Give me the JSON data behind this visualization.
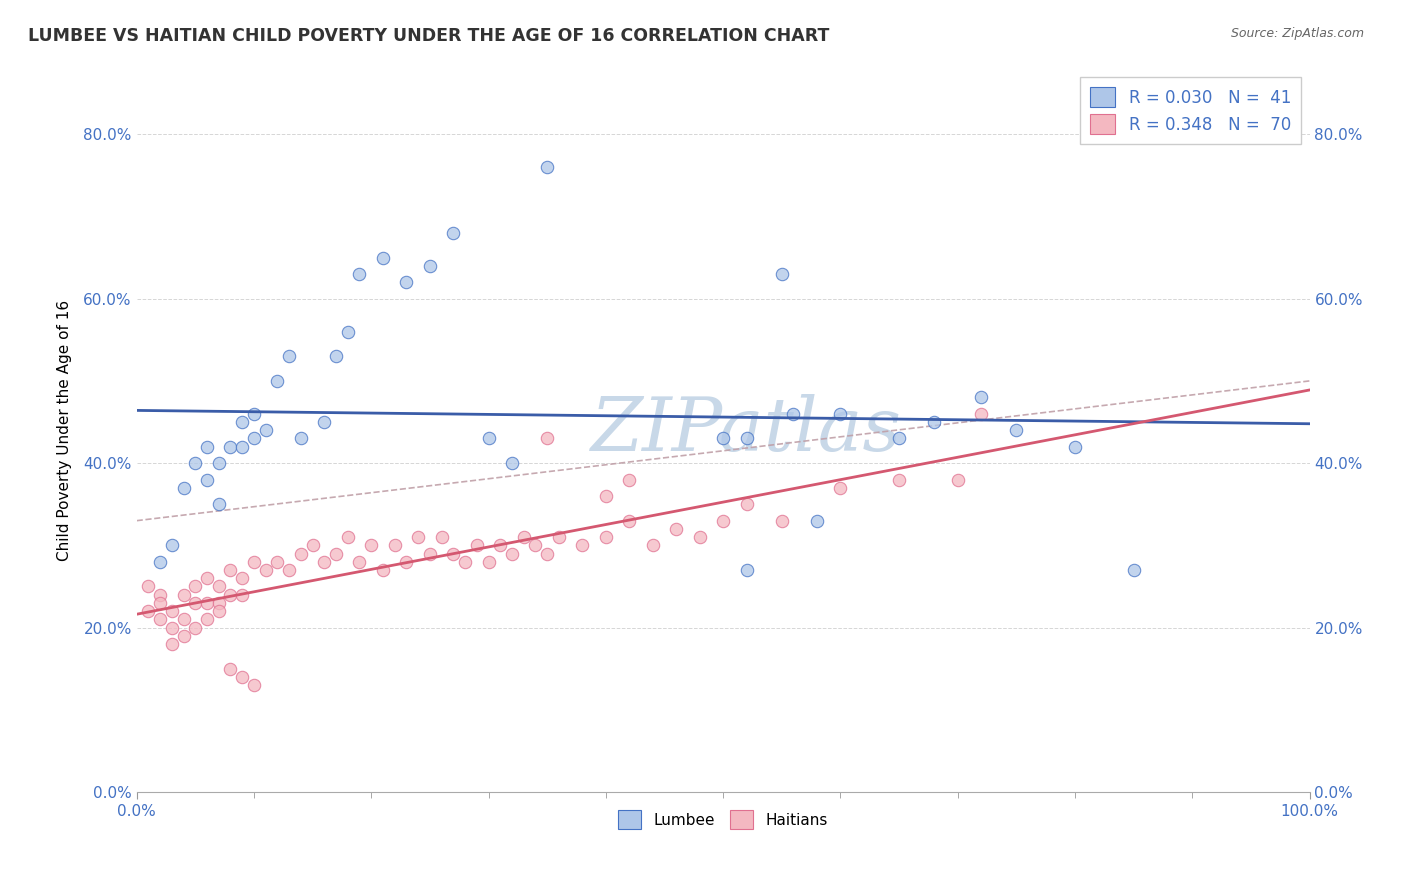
{
  "title": "LUMBEE VS HAITIAN CHILD POVERTY UNDER THE AGE OF 16 CORRELATION CHART",
  "source": "Source: ZipAtlas.com",
  "ylabel": "Child Poverty Under the Age of 16",
  "xlabel": "",
  "xlim": [
    0,
    1.0
  ],
  "ylim": [
    0.0,
    0.88
  ],
  "yticks": [
    0.0,
    0.2,
    0.4,
    0.6,
    0.8
  ],
  "ytick_labels": [
    "0.0%",
    "20.0%",
    "40.0%",
    "60.0%",
    "80.0%"
  ],
  "xtick_labels": [
    "0.0%",
    "100.0%"
  ],
  "lumbee_color": "#aec6e8",
  "haitian_color": "#f4b8c1",
  "lumbee_edge_color": "#4472c4",
  "haitian_edge_color": "#e07090",
  "lumbee_line_color": "#3a5ca8",
  "haitian_line_color": "#d45870",
  "dash_line_color": "#c0a0a8",
  "watermark": "ZIPatlas",
  "watermark_color": "#c8d8e8",
  "lumbee_x": [
    0.02,
    0.03,
    0.04,
    0.05,
    0.06,
    0.06,
    0.07,
    0.07,
    0.08,
    0.09,
    0.09,
    0.1,
    0.1,
    0.11,
    0.12,
    0.13,
    0.14,
    0.16,
    0.17,
    0.18,
    0.19,
    0.21,
    0.23,
    0.25,
    0.27,
    0.3,
    0.32,
    0.35,
    0.52,
    0.56,
    0.6,
    0.65,
    0.68,
    0.72,
    0.75,
    0.8,
    0.5,
    0.52,
    0.58,
    0.55,
    0.85
  ],
  "lumbee_y": [
    0.28,
    0.3,
    0.37,
    0.4,
    0.38,
    0.42,
    0.35,
    0.4,
    0.42,
    0.42,
    0.45,
    0.43,
    0.46,
    0.44,
    0.5,
    0.53,
    0.43,
    0.45,
    0.53,
    0.56,
    0.63,
    0.65,
    0.62,
    0.64,
    0.68,
    0.43,
    0.4,
    0.76,
    0.43,
    0.46,
    0.46,
    0.43,
    0.45,
    0.48,
    0.44,
    0.42,
    0.43,
    0.27,
    0.33,
    0.63,
    0.27
  ],
  "haitian_x": [
    0.01,
    0.01,
    0.02,
    0.02,
    0.02,
    0.03,
    0.03,
    0.03,
    0.04,
    0.04,
    0.04,
    0.05,
    0.05,
    0.05,
    0.06,
    0.06,
    0.06,
    0.07,
    0.07,
    0.07,
    0.08,
    0.08,
    0.09,
    0.09,
    0.1,
    0.11,
    0.12,
    0.13,
    0.14,
    0.15,
    0.16,
    0.17,
    0.18,
    0.19,
    0.2,
    0.21,
    0.22,
    0.23,
    0.24,
    0.25,
    0.26,
    0.27,
    0.28,
    0.29,
    0.3,
    0.31,
    0.32,
    0.33,
    0.34,
    0.35,
    0.36,
    0.38,
    0.4,
    0.42,
    0.44,
    0.46,
    0.48,
    0.5,
    0.52,
    0.35,
    0.4,
    0.42,
    0.55,
    0.6,
    0.65,
    0.7,
    0.72,
    0.08,
    0.09,
    0.1
  ],
  "haitian_y": [
    0.25,
    0.22,
    0.24,
    0.21,
    0.23,
    0.22,
    0.2,
    0.18,
    0.24,
    0.21,
    0.19,
    0.25,
    0.23,
    0.2,
    0.26,
    0.23,
    0.21,
    0.25,
    0.23,
    0.22,
    0.27,
    0.24,
    0.26,
    0.24,
    0.28,
    0.27,
    0.28,
    0.27,
    0.29,
    0.3,
    0.28,
    0.29,
    0.31,
    0.28,
    0.3,
    0.27,
    0.3,
    0.28,
    0.31,
    0.29,
    0.31,
    0.29,
    0.28,
    0.3,
    0.28,
    0.3,
    0.29,
    0.31,
    0.3,
    0.29,
    0.31,
    0.3,
    0.31,
    0.33,
    0.3,
    0.32,
    0.31,
    0.33,
    0.35,
    0.43,
    0.36,
    0.38,
    0.33,
    0.37,
    0.38,
    0.38,
    0.46,
    0.15,
    0.14,
    0.13
  ]
}
